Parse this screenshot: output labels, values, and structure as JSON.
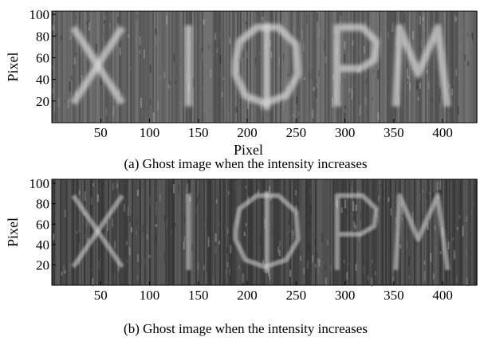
{
  "chart_data": [
    {
      "type": "image",
      "xlabel": "Pixel",
      "ylabel": "Pixel",
      "caption": "(a) Ghost image when the intensity increases",
      "xlim": [
        0,
        435
      ],
      "ylim": [
        0,
        103
      ],
      "xticks": [
        50,
        100,
        150,
        200,
        250,
        300,
        350,
        400
      ],
      "yticks": [
        20,
        40,
        60,
        80,
        100
      ]
    },
    {
      "type": "image",
      "ylabel": "Pixel",
      "caption": "(b) Ghost image when the intensity increases",
      "xlim": [
        0,
        435
      ],
      "ylim": [
        0,
        104
      ],
      "xticks": [
        50,
        100,
        150,
        200,
        250,
        300,
        350,
        400
      ],
      "yticks": [
        20,
        40,
        60,
        80,
        100
      ]
    }
  ]
}
